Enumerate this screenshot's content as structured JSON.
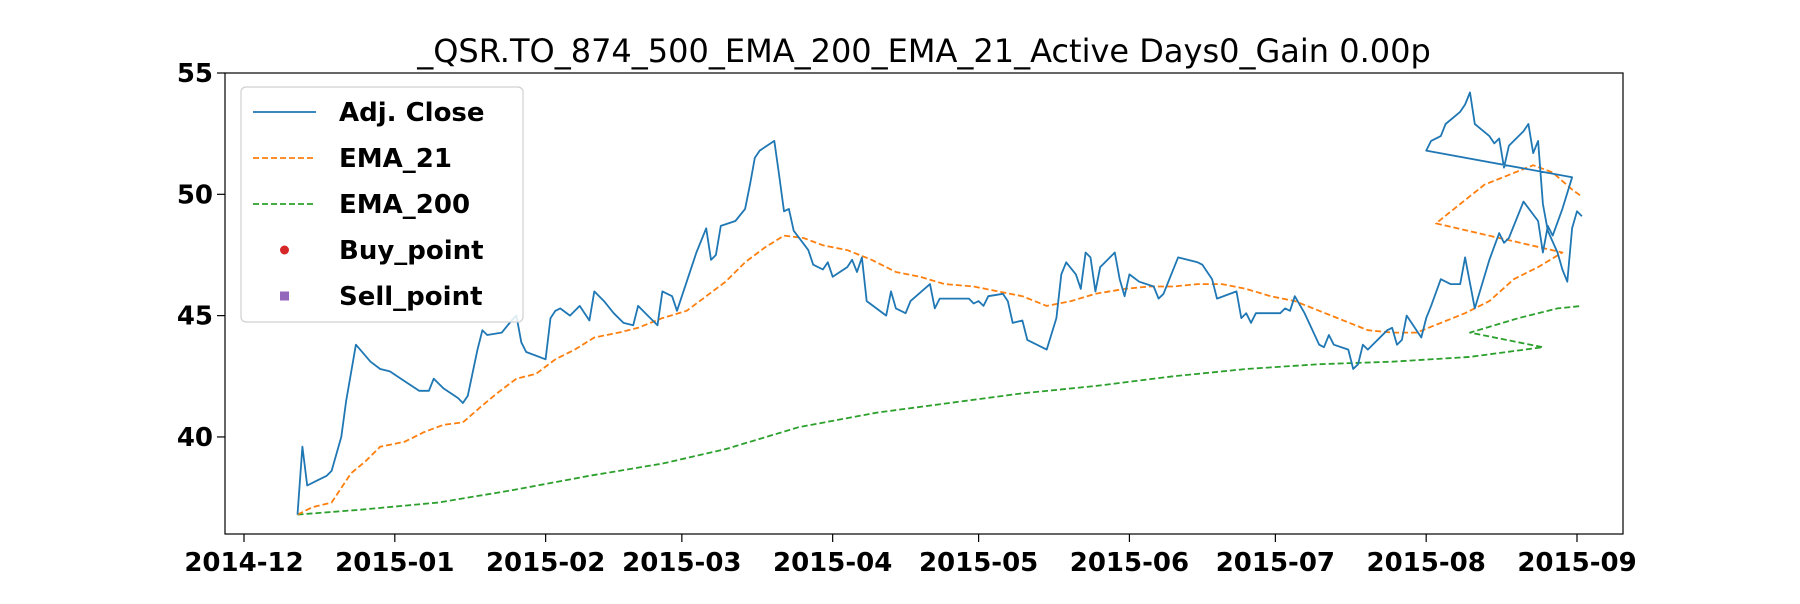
{
  "chart_data": {
    "type": "line",
    "title": "_QSR.TO_874_500_EMA_200_EMA_21_Active Days0_Gain   0.00p",
    "xlabel": "",
    "ylabel": "",
    "xlim": [
      "2014-12-01",
      "2015-09-01"
    ],
    "ylim": [
      36.0,
      55.0
    ],
    "x_ticks": [
      "2014-12",
      "2015-01",
      "2015-02",
      "2015-03",
      "2015-04",
      "2015-05",
      "2015-06",
      "2015-07",
      "2015-08",
      "2015-09"
    ],
    "y_ticks": [
      40,
      45,
      50,
      55
    ],
    "grid": false,
    "legend_position": "top-left",
    "series": [
      {
        "name": "Adj. Close",
        "style": "solid",
        "color": "#1f77b4",
        "points": [
          [
            "2014-12-12",
            36.8
          ],
          [
            "2014-12-13",
            39.6
          ],
          [
            "2014-12-14",
            38.0
          ],
          [
            "2014-12-16",
            38.2
          ],
          [
            "2014-12-18",
            38.4
          ],
          [
            "2014-12-19",
            38.6
          ],
          [
            "2014-12-21",
            40.0
          ],
          [
            "2014-12-22",
            41.5
          ],
          [
            "2014-12-24",
            43.8
          ],
          [
            "2014-12-27",
            43.1
          ],
          [
            "2014-12-29",
            42.8
          ],
          [
            "2014-12-31",
            42.7
          ],
          [
            "2015-01-03",
            42.3
          ],
          [
            "2015-01-06",
            41.9
          ],
          [
            "2015-01-08",
            41.9
          ],
          [
            "2015-01-09",
            42.4
          ],
          [
            "2015-01-11",
            42.0
          ],
          [
            "2015-01-14",
            41.6
          ],
          [
            "2015-01-15",
            41.4
          ],
          [
            "2015-01-16",
            41.7
          ],
          [
            "2015-01-18",
            43.6
          ],
          [
            "2015-01-19",
            44.4
          ],
          [
            "2015-01-20",
            44.2
          ],
          [
            "2015-01-23",
            44.3
          ],
          [
            "2015-01-25",
            44.8
          ],
          [
            "2015-01-26",
            45.0
          ],
          [
            "2015-01-27",
            43.9
          ],
          [
            "2015-01-28",
            43.5
          ],
          [
            "2015-02-01",
            43.2
          ],
          [
            "2015-02-02",
            44.9
          ],
          [
            "2015-02-03",
            45.2
          ],
          [
            "2015-02-04",
            45.3
          ],
          [
            "2015-02-06",
            45.0
          ],
          [
            "2015-02-08",
            45.4
          ],
          [
            "2015-02-10",
            44.8
          ],
          [
            "2015-02-11",
            46.0
          ],
          [
            "2015-02-13",
            45.6
          ],
          [
            "2015-02-15",
            45.1
          ],
          [
            "2015-02-17",
            44.7
          ],
          [
            "2015-02-19",
            44.6
          ],
          [
            "2015-02-20",
            45.4
          ],
          [
            "2015-02-22",
            45.0
          ],
          [
            "2015-02-24",
            44.6
          ],
          [
            "2015-02-25",
            46.0
          ],
          [
            "2015-02-27",
            45.8
          ],
          [
            "2015-02-28",
            45.2
          ],
          [
            "2015-03-02",
            46.4
          ],
          [
            "2015-03-04",
            47.6
          ],
          [
            "2015-03-06",
            48.6
          ],
          [
            "2015-03-07",
            47.3
          ],
          [
            "2015-03-08",
            47.5
          ],
          [
            "2015-03-09",
            48.7
          ],
          [
            "2015-03-12",
            48.9
          ],
          [
            "2015-03-14",
            49.4
          ],
          [
            "2015-03-15",
            50.4
          ],
          [
            "2015-03-16",
            51.5
          ],
          [
            "2015-03-17",
            51.8
          ],
          [
            "2015-03-20",
            52.2
          ],
          [
            "2015-03-21",
            50.8
          ],
          [
            "2015-03-22",
            49.3
          ],
          [
            "2015-03-23",
            49.4
          ],
          [
            "2015-03-24",
            48.5
          ],
          [
            "2015-03-27",
            47.7
          ],
          [
            "2015-03-28",
            47.1
          ],
          [
            "2015-03-30",
            46.9
          ],
          [
            "2015-03-31",
            47.2
          ],
          [
            "2015-04-01",
            46.6
          ],
          [
            "2015-04-04",
            47.0
          ],
          [
            "2015-04-05",
            47.3
          ],
          [
            "2015-04-06",
            46.8
          ],
          [
            "2015-04-07",
            47.4
          ],
          [
            "2015-04-08",
            45.6
          ],
          [
            "2015-04-12",
            45.0
          ],
          [
            "2015-04-13",
            46.0
          ],
          [
            "2015-04-14",
            45.3
          ],
          [
            "2015-04-16",
            45.1
          ],
          [
            "2015-04-17",
            45.6
          ],
          [
            "2015-04-21",
            46.3
          ],
          [
            "2015-04-22",
            45.3
          ],
          [
            "2015-04-23",
            45.7
          ],
          [
            "2015-04-29",
            45.7
          ],
          [
            "2015-04-30",
            45.5
          ],
          [
            "2015-05-01",
            45.6
          ],
          [
            "2015-05-02",
            45.4
          ],
          [
            "2015-05-03",
            45.8
          ],
          [
            "2015-05-06",
            45.9
          ],
          [
            "2015-05-07",
            45.6
          ],
          [
            "2015-05-08",
            44.7
          ],
          [
            "2015-05-10",
            44.8
          ],
          [
            "2015-05-11",
            44.0
          ],
          [
            "2015-05-14",
            43.7
          ],
          [
            "2015-05-15",
            43.6
          ],
          [
            "2015-05-17",
            44.9
          ],
          [
            "2015-05-18",
            46.7
          ],
          [
            "2015-05-19",
            47.2
          ],
          [
            "2015-05-21",
            46.7
          ],
          [
            "2015-05-22",
            46.1
          ],
          [
            "2015-05-23",
            47.6
          ],
          [
            "2015-05-24",
            47.4
          ],
          [
            "2015-05-25",
            46.0
          ],
          [
            "2015-05-26",
            47.0
          ],
          [
            "2015-05-29",
            47.6
          ],
          [
            "2015-05-30",
            46.5
          ],
          [
            "2015-05-31",
            45.8
          ],
          [
            "2015-06-01",
            46.7
          ],
          [
            "2015-06-03",
            46.4
          ],
          [
            "2015-06-06",
            46.2
          ],
          [
            "2015-06-07",
            45.7
          ],
          [
            "2015-06-08",
            45.9
          ],
          [
            "2015-06-11",
            47.4
          ],
          [
            "2015-06-15",
            47.2
          ],
          [
            "2015-06-16",
            47.1
          ],
          [
            "2015-06-18",
            46.5
          ],
          [
            "2015-06-19",
            45.7
          ],
          [
            "2015-06-23",
            46.0
          ],
          [
            "2015-06-24",
            44.9
          ],
          [
            "2015-06-25",
            45.1
          ],
          [
            "2015-06-26",
            44.7
          ],
          [
            "2015-06-27",
            45.1
          ],
          [
            "2015-07-02",
            45.1
          ],
          [
            "2015-07-03",
            45.3
          ],
          [
            "2015-07-04",
            45.2
          ],
          [
            "2015-07-05",
            45.8
          ],
          [
            "2015-07-07",
            45.1
          ],
          [
            "2015-07-10",
            43.8
          ],
          [
            "2015-07-11",
            43.7
          ],
          [
            "2015-07-12",
            44.2
          ],
          [
            "2015-07-13",
            43.8
          ],
          [
            "2015-07-16",
            43.6
          ],
          [
            "2015-07-17",
            42.8
          ],
          [
            "2015-07-18",
            43.0
          ],
          [
            "2015-07-19",
            43.8
          ],
          [
            "2015-07-20",
            43.6
          ],
          [
            "2015-07-24",
            44.4
          ],
          [
            "2015-07-25",
            44.5
          ],
          [
            "2015-07-26",
            43.8
          ],
          [
            "2015-07-27",
            44.0
          ],
          [
            "2015-07-28",
            45.0
          ],
          [
            "2015-07-31",
            44.1
          ],
          [
            "2015-08-01",
            44.9
          ],
          [
            "2015-08-02",
            45.4
          ],
          [
            "2015-08-04",
            46.5
          ],
          [
            "2015-08-06",
            46.3
          ],
          [
            "2015-08-07",
            46.3
          ],
          [
            "2015-08-08",
            46.3
          ],
          [
            "2015-08-09",
            47.4
          ],
          [
            "2015-08-11",
            45.3
          ],
          [
            "2015-08-14",
            47.3
          ],
          [
            "2015-08-16",
            48.4
          ],
          [
            "2015-08-17",
            48.0
          ],
          [
            "2015-08-18",
            48.2
          ],
          [
            "2015-08-21",
            49.7
          ],
          [
            "2015-08-24",
            48.9
          ],
          [
            "2015-08-25",
            47.6
          ],
          [
            "2015-08-26",
            48.7
          ],
          [
            "2015-08-27",
            48.3
          ],
          [
            "2015-08-29",
            49.4
          ],
          [
            "2015-08-31",
            50.7
          ],
          [
            "2015-08-01",
            51.8
          ],
          [
            "2015-08-02",
            52.2
          ],
          [
            "2015-08-04",
            52.4
          ],
          [
            "2015-08-05",
            52.9
          ],
          [
            "2015-08-08",
            53.4
          ],
          [
            "2015-08-09",
            53.7
          ],
          [
            "2015-08-10",
            54.2
          ],
          [
            "2015-08-11",
            52.9
          ],
          [
            "2015-08-14",
            52.4
          ],
          [
            "2015-08-15",
            52.1
          ],
          [
            "2015-08-16",
            52.3
          ],
          [
            "2015-08-17",
            51.1
          ],
          [
            "2015-08-18",
            52.0
          ],
          [
            "2015-08-21",
            52.6
          ],
          [
            "2015-08-22",
            52.9
          ],
          [
            "2015-08-23",
            51.7
          ],
          [
            "2015-08-24",
            52.2
          ],
          [
            "2015-08-25",
            49.6
          ],
          [
            "2015-08-26",
            48.5
          ],
          [
            "2015-08-28",
            47.6
          ],
          [
            "2015-08-29",
            46.9
          ],
          [
            "2015-08-30",
            46.4
          ],
          [
            "2015-08-31",
            48.6
          ],
          [
            "2015-09-01",
            49.3
          ],
          [
            "2015-09-02",
            49.1
          ]
        ]
      },
      {
        "name": "EMA_21",
        "style": "dashed",
        "color": "#ff7f0e",
        "points": [
          [
            "2014-12-12",
            36.8
          ],
          [
            "2014-12-15",
            37.1
          ],
          [
            "2014-12-19",
            37.3
          ],
          [
            "2014-12-23",
            38.5
          ],
          [
            "2014-12-26",
            39.0
          ],
          [
            "2014-12-29",
            39.6
          ],
          [
            "2015-01-03",
            39.8
          ],
          [
            "2015-01-07",
            40.2
          ],
          [
            "2015-01-11",
            40.5
          ],
          [
            "2015-01-15",
            40.6
          ],
          [
            "2015-01-19",
            41.3
          ],
          [
            "2015-01-22",
            41.8
          ],
          [
            "2015-01-26",
            42.4
          ],
          [
            "2015-01-30",
            42.6
          ],
          [
            "2015-02-03",
            43.2
          ],
          [
            "2015-02-07",
            43.6
          ],
          [
            "2015-02-11",
            44.1
          ],
          [
            "2015-02-16",
            44.3
          ],
          [
            "2015-02-20",
            44.5
          ],
          [
            "2015-02-25",
            44.9
          ],
          [
            "2015-03-02",
            45.2
          ],
          [
            "2015-03-06",
            45.8
          ],
          [
            "2015-03-10",
            46.4
          ],
          [
            "2015-03-14",
            47.2
          ],
          [
            "2015-03-18",
            47.8
          ],
          [
            "2015-03-22",
            48.3
          ],
          [
            "2015-03-26",
            48.2
          ],
          [
            "2015-03-30",
            47.9
          ],
          [
            "2015-04-04",
            47.7
          ],
          [
            "2015-04-09",
            47.3
          ],
          [
            "2015-04-14",
            46.8
          ],
          [
            "2015-04-19",
            46.6
          ],
          [
            "2015-04-24",
            46.3
          ],
          [
            "2015-04-30",
            46.2
          ],
          [
            "2015-05-05",
            46.0
          ],
          [
            "2015-05-10",
            45.8
          ],
          [
            "2015-05-15",
            45.4
          ],
          [
            "2015-05-20",
            45.6
          ],
          [
            "2015-05-25",
            45.9
          ],
          [
            "2015-05-31",
            46.1
          ],
          [
            "2015-06-05",
            46.2
          ],
          [
            "2015-06-10",
            46.2
          ],
          [
            "2015-06-15",
            46.3
          ],
          [
            "2015-06-20",
            46.3
          ],
          [
            "2015-06-25",
            46.1
          ],
          [
            "2015-06-30",
            45.8
          ],
          [
            "2015-07-05",
            45.6
          ],
          [
            "2015-07-10",
            45.2
          ],
          [
            "2015-07-15",
            44.8
          ],
          [
            "2015-07-20",
            44.4
          ],
          [
            "2015-07-25",
            44.3
          ],
          [
            "2015-07-30",
            44.3
          ],
          [
            "2015-08-04",
            44.7
          ],
          [
            "2015-08-09",
            45.1
          ],
          [
            "2015-08-14",
            45.6
          ],
          [
            "2015-08-19",
            46.5
          ],
          [
            "2015-08-24",
            47.0
          ],
          [
            "2015-08-29",
            47.6
          ],
          [
            "2015-08-03",
            48.8
          ],
          [
            "2015-08-08",
            49.6
          ],
          [
            "2015-08-13",
            50.4
          ],
          [
            "2015-08-18",
            50.8
          ],
          [
            "2015-08-23",
            51.2
          ],
          [
            "2015-08-27",
            50.9
          ],
          [
            "2015-08-31",
            50.2
          ],
          [
            "2015-09-02",
            49.9
          ]
        ]
      },
      {
        "name": "EMA_200",
        "style": "dashed",
        "color": "#2ca02c",
        "points": [
          [
            "2014-12-12",
            36.8
          ],
          [
            "2014-12-25",
            37.0
          ],
          [
            "2015-01-10",
            37.3
          ],
          [
            "2015-01-25",
            37.8
          ],
          [
            "2015-02-10",
            38.4
          ],
          [
            "2015-02-25",
            38.9
          ],
          [
            "2015-03-10",
            39.5
          ],
          [
            "2015-03-25",
            40.4
          ],
          [
            "2015-04-10",
            41.0
          ],
          [
            "2015-04-25",
            41.4
          ],
          [
            "2015-05-10",
            41.8
          ],
          [
            "2015-05-25",
            42.1
          ],
          [
            "2015-06-10",
            42.5
          ],
          [
            "2015-06-25",
            42.8
          ],
          [
            "2015-07-10",
            43.0
          ],
          [
            "2015-07-25",
            43.1
          ],
          [
            "2015-08-10",
            43.3
          ],
          [
            "2015-08-25",
            43.7
          ],
          [
            "2015-08-10",
            44.3
          ],
          [
            "2015-08-20",
            44.9
          ],
          [
            "2015-08-28",
            45.3
          ],
          [
            "2015-09-02",
            45.4
          ]
        ]
      },
      {
        "name": "Buy_point",
        "style": "marker-circle",
        "color": "#d62728",
        "points": []
      },
      {
        "name": "Sell_point",
        "style": "marker-square",
        "color": "#9467bd",
        "points": []
      }
    ]
  }
}
